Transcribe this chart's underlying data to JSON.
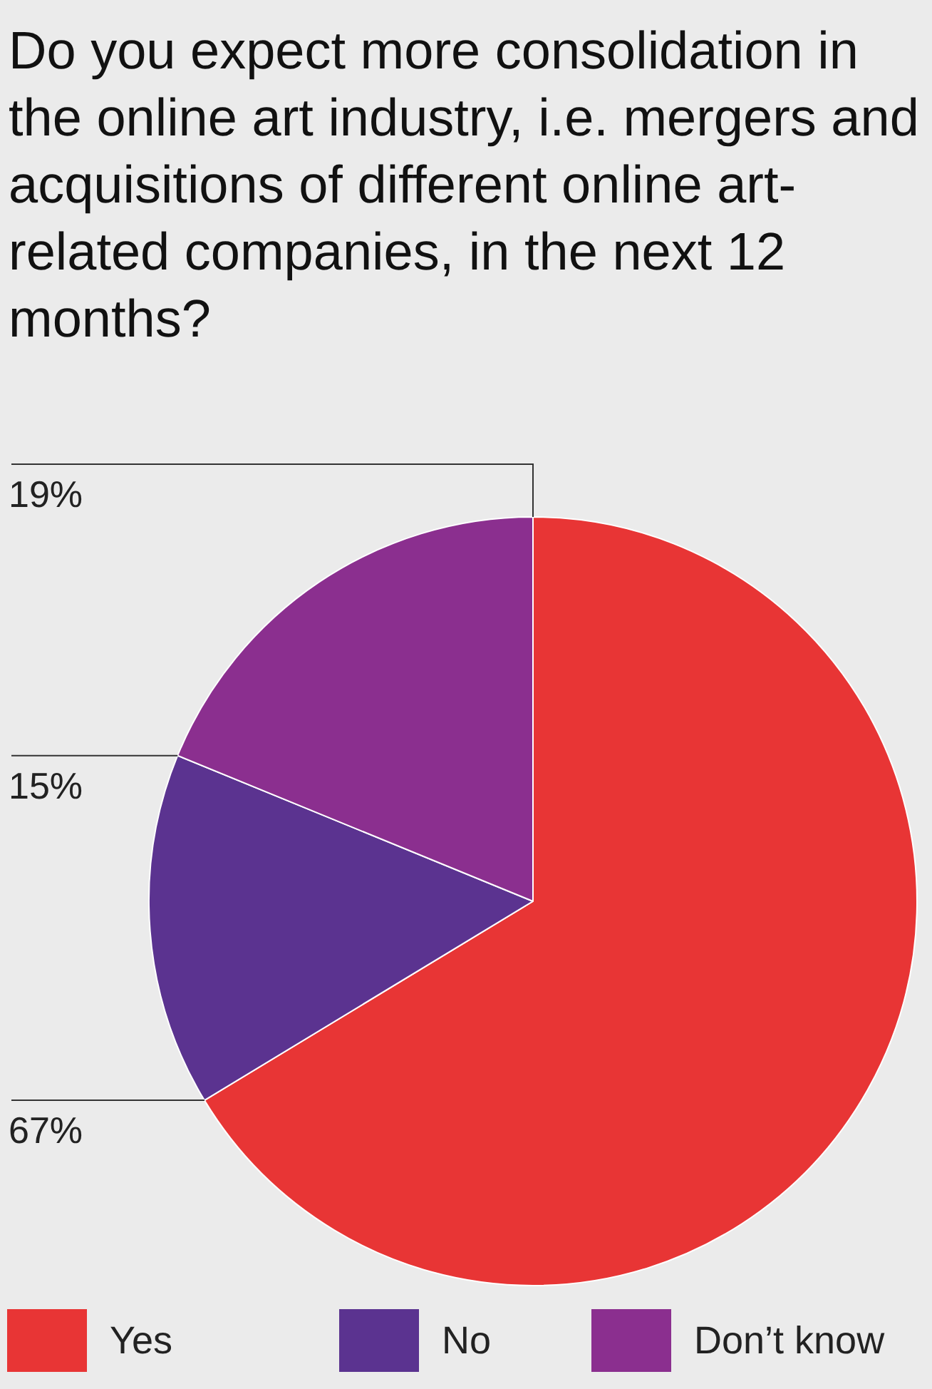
{
  "chart_data": {
    "type": "pie",
    "title": "Do you expect more consolidation in the online art industry, i.e. mergers and acquisitions of different online art-related companies, in the next 12 months?",
    "categories": [
      "Yes",
      "No",
      "Don’t know"
    ],
    "values": [
      67,
      15,
      19
    ],
    "colors": [
      "#e83535",
      "#5b3390",
      "#8b2f8f"
    ],
    "value_labels": [
      "67%",
      "15%",
      "19%"
    ],
    "legend": "bottom"
  }
}
